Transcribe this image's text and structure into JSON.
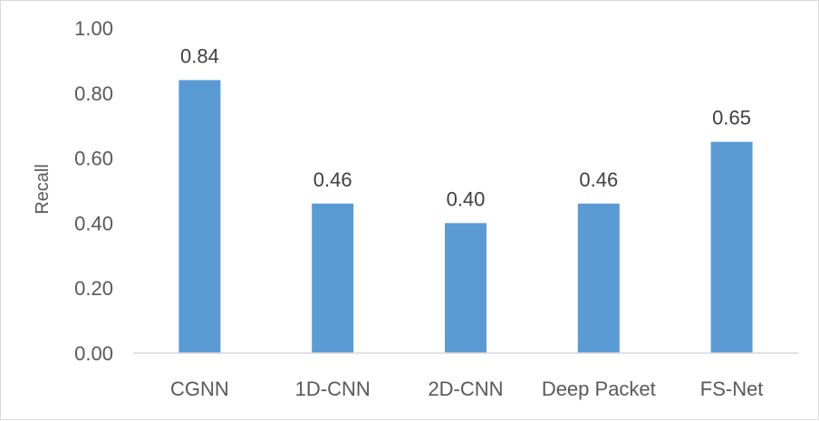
{
  "chart_data": {
    "type": "bar",
    "categories": [
      "CGNN",
      "1D-CNN",
      "2D-CNN",
      "Deep Packet",
      "FS-Net"
    ],
    "values": [
      0.84,
      0.46,
      0.4,
      0.46,
      0.65
    ],
    "value_labels": [
      "0.84",
      "0.46",
      "0.40",
      "0.46",
      "0.65"
    ],
    "title": "",
    "xlabel": "",
    "ylabel": "Recall",
    "ylim": [
      0,
      1
    ],
    "yticks": [
      0.0,
      0.2,
      0.4,
      0.6,
      0.8,
      1.0
    ],
    "ytick_labels": [
      "0.00",
      "0.20",
      "0.40",
      "0.60",
      "0.80",
      "1.00"
    ],
    "grid": false,
    "legend": "none",
    "bar_color": "#5B9BD5",
    "axis_color": "#d9d9d9"
  }
}
